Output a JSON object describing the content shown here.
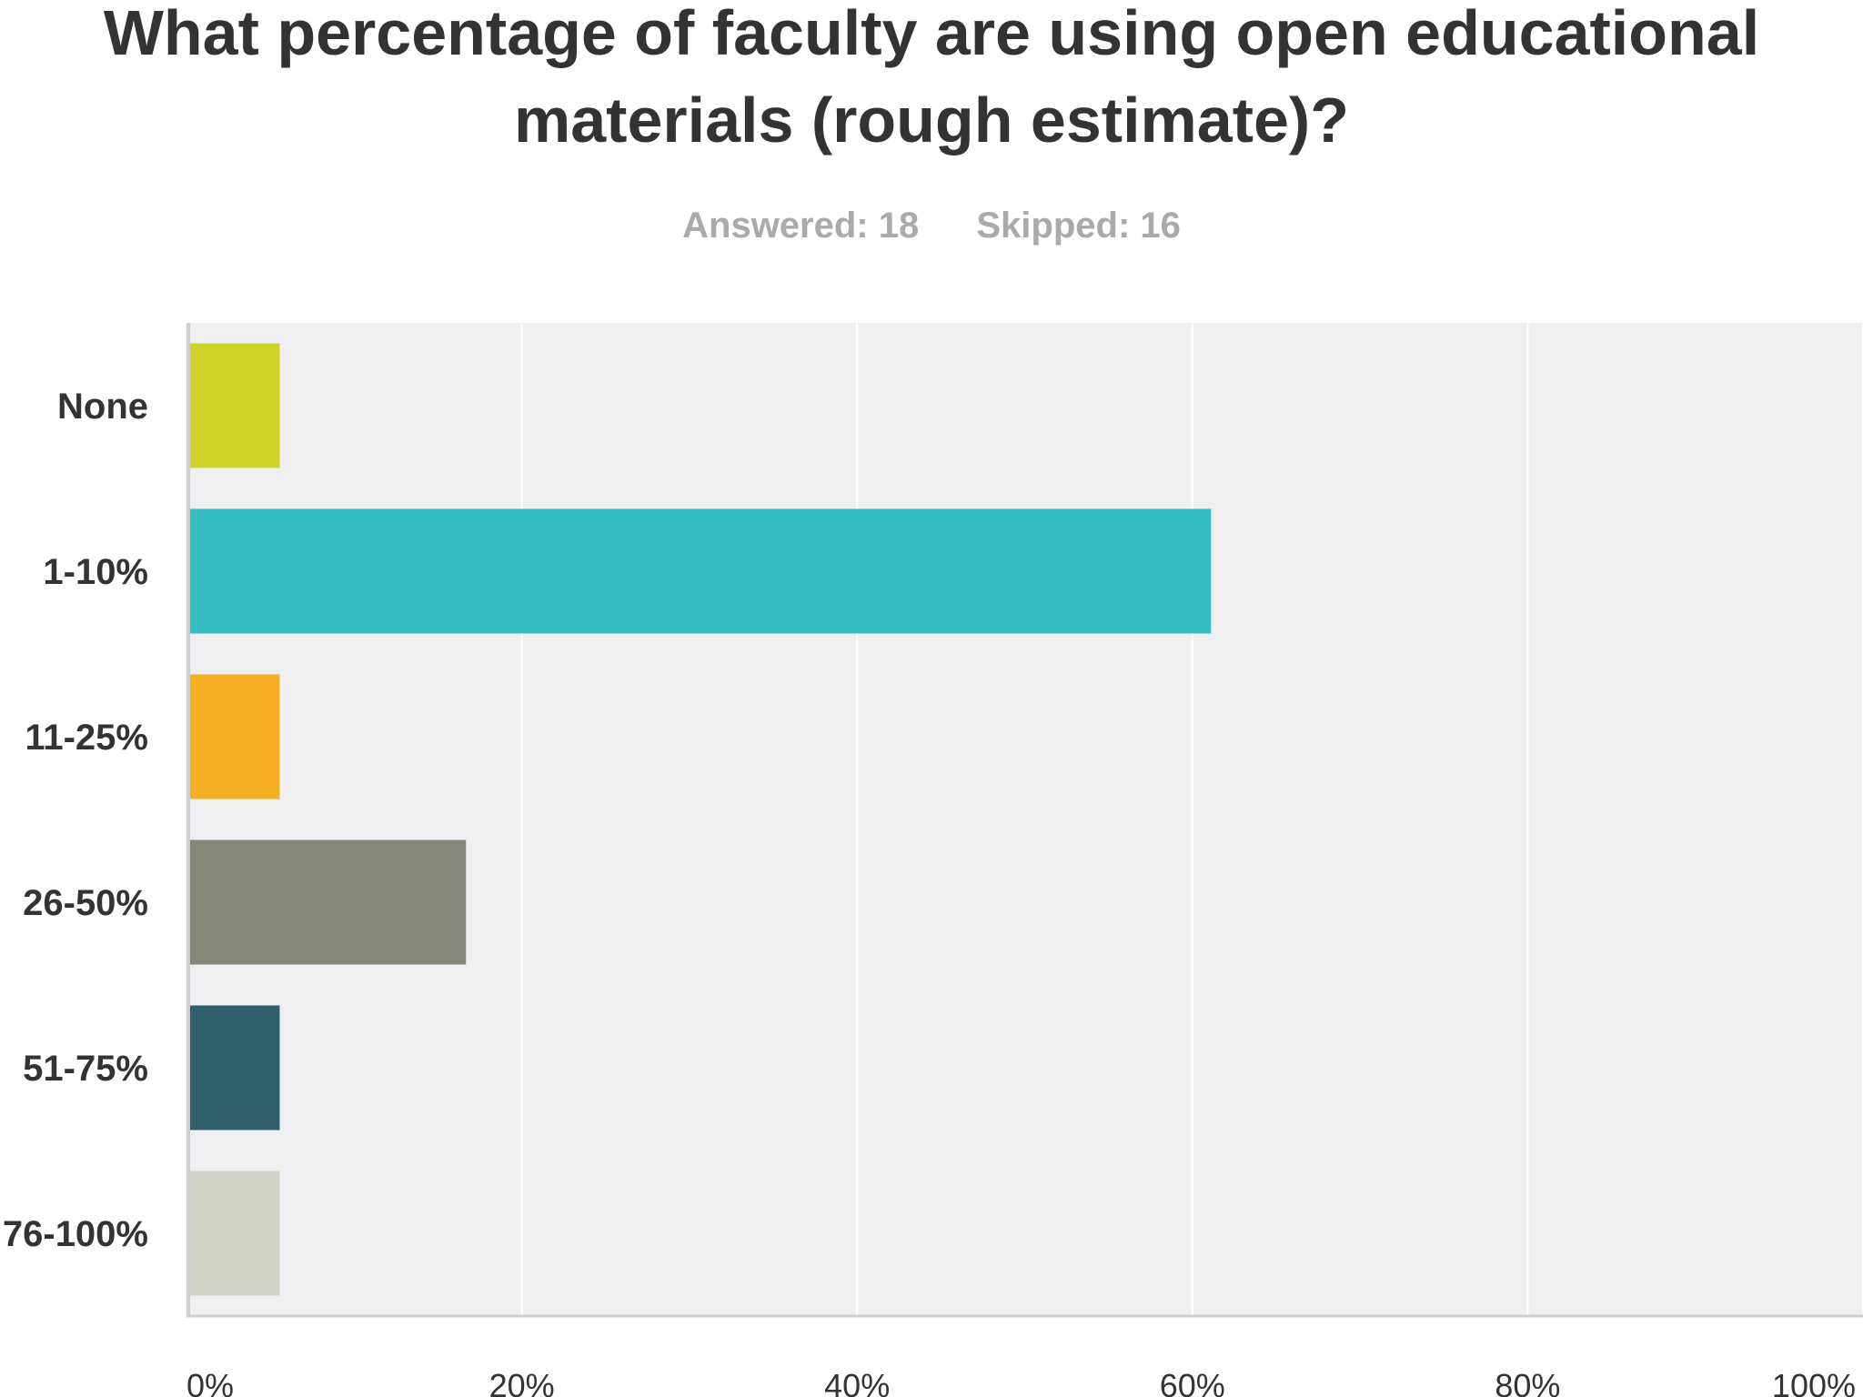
{
  "title": "What percentage of faculty are using open educational materials (rough estimate)?",
  "stats": {
    "answered": "Answered: 18",
    "skipped": "Skipped: 16"
  },
  "chart_data": {
    "type": "bar",
    "orientation": "horizontal",
    "title": "What percentage of faculty are using open educational materials (rough estimate)?",
    "categories": [
      "None",
      "1-10%",
      "11-25%",
      "26-50%",
      "51-75%",
      "76-100%"
    ],
    "values": [
      5.56,
      61.11,
      5.56,
      16.67,
      5.56,
      5.56
    ],
    "colors": [
      "#d0d22a",
      "#33bdc0",
      "#f5af22",
      "#858778",
      "#2f5f6b",
      "#d0d0c4"
    ],
    "xlabel": "",
    "ylabel": "",
    "xlim": [
      0,
      100
    ],
    "xticks": [
      0,
      20,
      40,
      60,
      80,
      100
    ],
    "xtick_labels": [
      "0%",
      "20%",
      "40%",
      "60%",
      "80%",
      "100%"
    ],
    "grid": true,
    "plot_background": "#efeff1",
    "label_color": "#333333"
  }
}
